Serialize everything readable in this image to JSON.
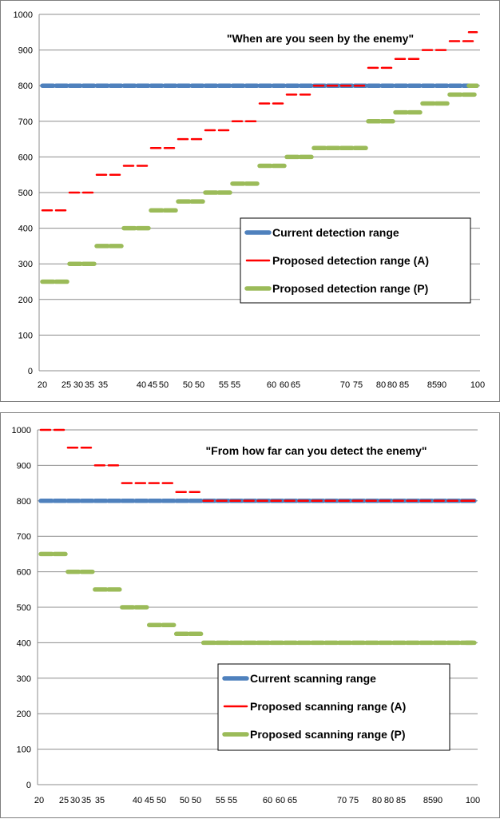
{
  "chart_data": [
    {
      "type": "line",
      "title": "\"When are you seen by the enemy\"",
      "xlabel": "",
      "ylabel": "",
      "ylim": [
        0,
        1000
      ],
      "yticks": [
        0,
        100,
        200,
        300,
        400,
        500,
        600,
        700,
        800,
        900,
        1000
      ],
      "grid": true,
      "legend_position": "center-right",
      "x_tick_labels": [
        "20",
        "25",
        "30",
        "35",
        "35",
        "40",
        "45",
        "50",
        "50",
        "50",
        "55",
        "55",
        "60",
        "60",
        "65",
        "70",
        "75",
        "80",
        "80",
        "85",
        "85",
        "90",
        "100"
      ],
      "series": [
        {
          "name": "Current detection range",
          "color": "#4f81bd",
          "x": [
            20,
            100
          ],
          "values": [
            800,
            800
          ]
        },
        {
          "name": "Proposed detection range (A)",
          "color": "#ff0000",
          "x": [
            20,
            25,
            30,
            35,
            40,
            45,
            50,
            55,
            60,
            65,
            70,
            75,
            80,
            85,
            90,
            95,
            100
          ],
          "values": [
            450,
            500,
            550,
            575,
            625,
            650,
            675,
            700,
            750,
            775,
            800,
            800,
            850,
            875,
            900,
            925,
            950
          ]
        },
        {
          "name": "Proposed detection range (P)",
          "color": "#9bbb59",
          "x": [
            20,
            25,
            30,
            35,
            40,
            45,
            50,
            55,
            60,
            65,
            70,
            75,
            80,
            85,
            90,
            95,
            100
          ],
          "values": [
            250,
            300,
            350,
            400,
            450,
            475,
            500,
            525,
            575,
            600,
            625,
            625,
            700,
            725,
            750,
            775,
            800
          ]
        }
      ]
    },
    {
      "type": "line",
      "title": "\"From how far can you detect the enemy\"",
      "xlabel": "",
      "ylabel": "",
      "ylim": [
        0,
        1000
      ],
      "yticks": [
        0,
        100,
        200,
        300,
        400,
        500,
        600,
        700,
        800,
        900,
        1000
      ],
      "grid": true,
      "legend_position": "center-right",
      "x_tick_labels": [
        "20",
        "25",
        "30",
        "35",
        "35",
        "40",
        "45",
        "50",
        "50",
        "50",
        "55",
        "55",
        "60",
        "60",
        "65",
        "70",
        "75",
        "80",
        "80",
        "85",
        "85",
        "90",
        "100"
      ],
      "series": [
        {
          "name": "Current scanning range",
          "color": "#4f81bd",
          "x": [
            20,
            100
          ],
          "values": [
            800,
            800
          ]
        },
        {
          "name": "Proposed scanning range (A)",
          "color": "#ff0000",
          "x": [
            20,
            25,
            30,
            35,
            40,
            45,
            50,
            100
          ],
          "values": [
            1000,
            950,
            900,
            850,
            850,
            825,
            800,
            800
          ]
        },
        {
          "name": "Proposed scanning range (P)",
          "color": "#9bbb59",
          "x": [
            20,
            25,
            30,
            35,
            40,
            45,
            50,
            100
          ],
          "values": [
            650,
            600,
            550,
            500,
            450,
            425,
            400,
            400
          ]
        }
      ]
    }
  ]
}
